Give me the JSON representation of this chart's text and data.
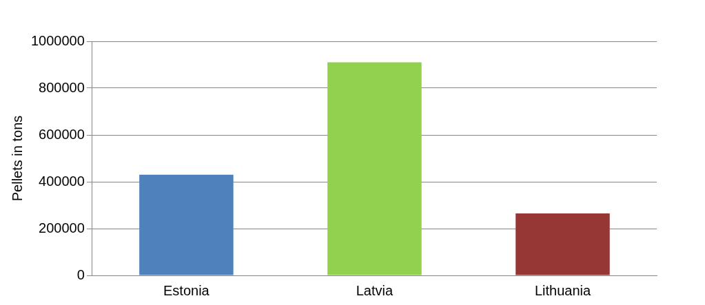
{
  "chart_data": {
    "type": "bar",
    "ylabel": "Pellets in tons",
    "categories": [
      "Estonia",
      "Latvia",
      "Lithuania"
    ],
    "values": [
      430000,
      910000,
      265000
    ],
    "colors": [
      "#4f81bd",
      "#92d050",
      "#953735"
    ],
    "ylim": [
      0,
      1000000
    ],
    "yticks": [
      0,
      200000,
      400000,
      600000,
      800000,
      1000000
    ],
    "grid": "y",
    "legend": false
  }
}
